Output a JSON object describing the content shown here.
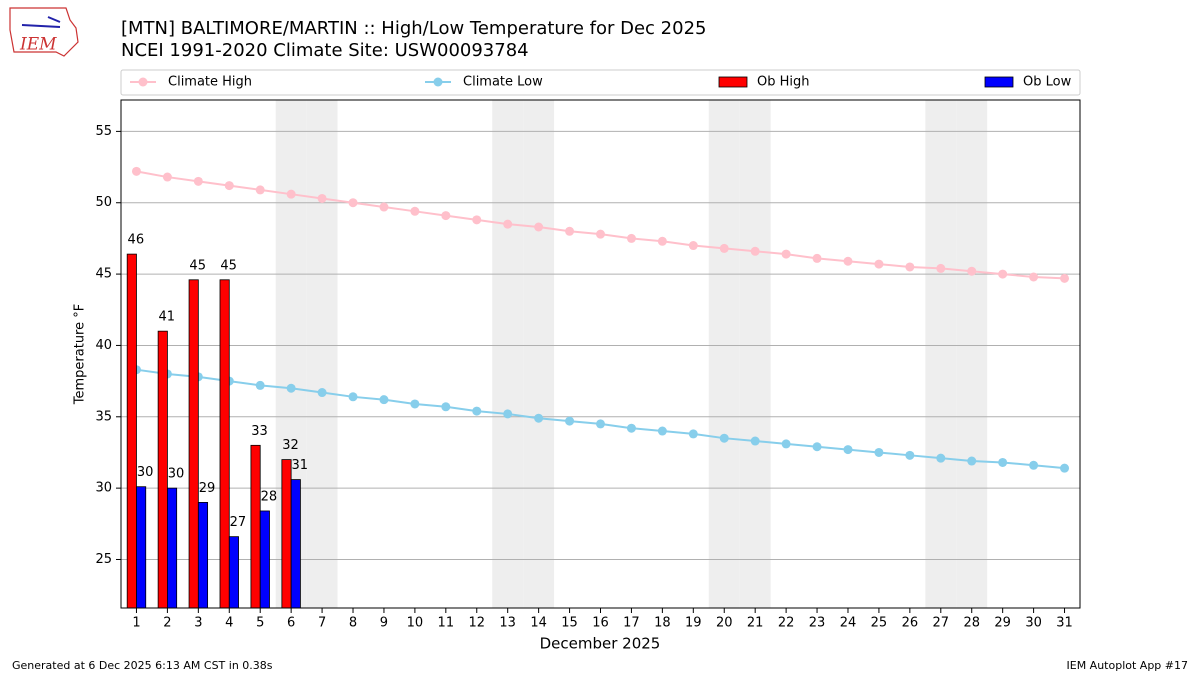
{
  "chart_data": {
    "type": "bar",
    "logo": "IEM",
    "title": "[MTN] BALTIMORE/MARTIN :: High/Low Temperature for Dec 2025",
    "subtitle": "NCEI 1991-2020 Climate Site: USW00093784",
    "xlabel": "December 2025",
    "ylabel": "Temperature °F",
    "footer_left": "Generated at 6 Dec 2025 6:13 AM CST in 0.38s",
    "footer_right": "IEM Autoplot App #17",
    "categories": [
      "1",
      "2",
      "3",
      "4",
      "5",
      "6",
      "7",
      "8",
      "9",
      "10",
      "11",
      "12",
      "13",
      "14",
      "15",
      "16",
      "17",
      "18",
      "19",
      "20",
      "21",
      "22",
      "23",
      "24",
      "25",
      "26",
      "27",
      "28",
      "29",
      "30",
      "31"
    ],
    "shaded_days": [
      "6",
      "7",
      "13",
      "14",
      "20",
      "21",
      "27",
      "28"
    ],
    "series": [
      {
        "name": "Climate High",
        "type": "line",
        "color": "#ffc0cb",
        "values": [
          52.2,
          51.8,
          51.5,
          51.2,
          50.9,
          50.6,
          50.3,
          50.0,
          49.7,
          49.4,
          49.1,
          48.8,
          48.5,
          48.3,
          48.0,
          47.8,
          47.5,
          47.3,
          47.0,
          46.8,
          46.6,
          46.4,
          46.1,
          45.9,
          45.7,
          45.5,
          45.4,
          45.2,
          45.0,
          44.8,
          44.7
        ]
      },
      {
        "name": "Climate Low",
        "type": "line",
        "color": "#87ceeb",
        "values": [
          38.3,
          38.0,
          37.8,
          37.5,
          37.2,
          37.0,
          36.7,
          36.4,
          36.2,
          35.9,
          35.7,
          35.4,
          35.2,
          34.9,
          34.7,
          34.5,
          34.2,
          34.0,
          33.8,
          33.5,
          33.3,
          33.1,
          32.9,
          32.7,
          32.5,
          32.3,
          32.1,
          31.9,
          31.8,
          31.6,
          31.4
        ]
      },
      {
        "name": "Ob High",
        "type": "bar",
        "color": "#ff0000",
        "values": [
          46.4,
          41.0,
          44.6,
          44.6,
          33.0,
          32.0,
          null,
          null,
          null,
          null,
          null,
          null,
          null,
          null,
          null,
          null,
          null,
          null,
          null,
          null,
          null,
          null,
          null,
          null,
          null,
          null,
          null,
          null,
          null,
          null,
          null
        ],
        "value_labels": [
          "46",
          "41",
          "45",
          "45",
          "33",
          "32",
          null,
          null,
          null,
          null,
          null,
          null,
          null,
          null,
          null,
          null,
          null,
          null,
          null,
          null,
          null,
          null,
          null,
          null,
          null,
          null,
          null,
          null,
          null,
          null,
          null
        ]
      },
      {
        "name": "Ob Low",
        "type": "bar",
        "color": "#0000ff",
        "values": [
          30.1,
          30.0,
          29.0,
          26.6,
          28.4,
          30.6,
          null,
          null,
          null,
          null,
          null,
          null,
          null,
          null,
          null,
          null,
          null,
          null,
          null,
          null,
          null,
          null,
          null,
          null,
          null,
          null,
          null,
          null,
          null,
          null,
          null
        ],
        "value_labels": [
          "30",
          "30",
          "29",
          "27",
          "28",
          "31",
          null,
          null,
          null,
          null,
          null,
          null,
          null,
          null,
          null,
          null,
          null,
          null,
          null,
          null,
          null,
          null,
          null,
          null,
          null,
          null,
          null,
          null,
          null,
          null,
          null
        ]
      }
    ],
    "ylim": [
      21.6,
      57.2
    ],
    "yticks": [
      25,
      30,
      35,
      40,
      45,
      50,
      55
    ],
    "grid": true
  }
}
